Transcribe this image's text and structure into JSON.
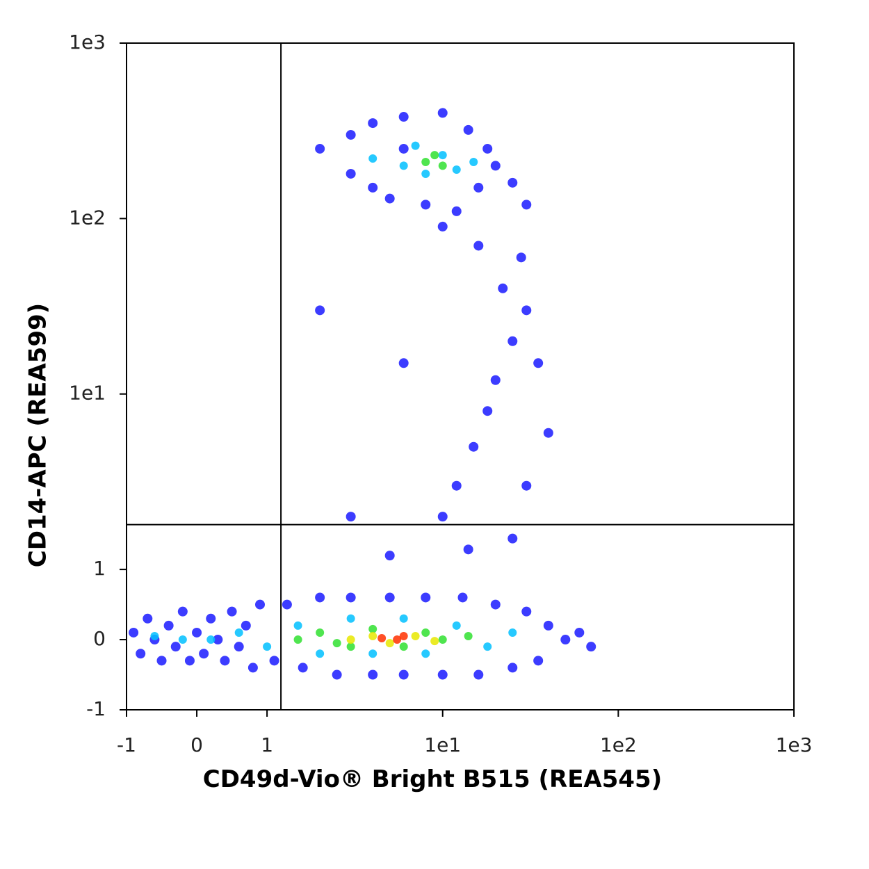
{
  "chart_data": {
    "type": "scatter",
    "x_label": "CD49d-Vio® Bright B515 (REA545)",
    "y_label": "CD14-APC (REA599)",
    "xscale": "biexponential",
    "yscale": "biexponential",
    "xlim": [
      -1,
      1000
    ],
    "ylim": [
      -1,
      1000
    ],
    "xticks": [
      -1,
      0,
      1,
      {
        "value": 10,
        "label": "1e1"
      },
      {
        "value": 100,
        "label": "1e2"
      },
      {
        "value": 1000,
        "label": "1e3"
      }
    ],
    "yticks": [
      -1,
      0,
      1,
      {
        "value": 10,
        "label": "1e1"
      },
      {
        "value": 100,
        "label": "1e2"
      },
      {
        "value": 1000,
        "label": "1e3"
      }
    ],
    "quadrant_lines": {
      "x": 1.2,
      "y": 1.8
    },
    "series": [
      {
        "color": "#1a1aff",
        "x": [
          -0.9,
          -0.8,
          -0.7,
          -0.6,
          -0.5,
          -0.4,
          -0.3,
          -0.2,
          -0.1,
          0,
          0.1,
          0.2,
          0.3,
          0.4,
          0.5,
          0.6,
          0.7,
          0.8,
          0.9,
          1.1,
          1.3,
          1.6,
          2,
          2.5,
          3,
          4,
          5,
          6,
          8,
          10,
          13,
          16,
          20,
          25,
          30,
          35,
          40,
          50,
          60,
          70,
          10,
          12,
          15,
          18,
          20,
          25,
          30,
          22,
          28,
          16,
          35,
          40,
          30,
          25,
          14,
          5,
          3,
          2,
          6,
          2,
          3,
          3,
          4,
          4,
          5,
          6,
          8,
          10,
          12,
          14,
          16,
          18,
          20,
          25,
          30,
          6,
          10
        ],
        "y": [
          0.1,
          -0.2,
          0.3,
          0,
          -0.3,
          0.2,
          -0.1,
          0.4,
          -0.3,
          0.1,
          -0.2,
          0.3,
          0,
          -0.3,
          0.4,
          -0.1,
          0.2,
          -0.4,
          0.5,
          -0.3,
          0.5,
          -0.4,
          0.6,
          -0.5,
          0.6,
          -0.5,
          0.6,
          -0.5,
          0.6,
          -0.5,
          0.6,
          -0.5,
          0.5,
          -0.4,
          0.4,
          -0.3,
          0.2,
          0,
          0.1,
          -0.1,
          2,
          3,
          5,
          8,
          12,
          20,
          30,
          40,
          60,
          70,
          15,
          6,
          3,
          1.5,
          1.3,
          1.2,
          2,
          30,
          15,
          250,
          180,
          300,
          150,
          350,
          130,
          380,
          120,
          400,
          110,
          320,
          150,
          250,
          200,
          160,
          120,
          250,
          90
        ]
      },
      {
        "color": "#00c0ff",
        "x": [
          0.2,
          0.6,
          1,
          1.5,
          2,
          3,
          4,
          6,
          8,
          12,
          18,
          25,
          -0.2,
          -0.6,
          4,
          6,
          8,
          10,
          12,
          7,
          15
        ],
        "y": [
          0,
          0.1,
          -0.1,
          0.2,
          -0.2,
          0.3,
          -0.2,
          0.3,
          -0.2,
          0.2,
          -0.1,
          0.1,
          0,
          0.05,
          220,
          200,
          180,
          230,
          190,
          260,
          210
        ]
      },
      {
        "color": "#30e030",
        "x": [
          1.5,
          2,
          3,
          4,
          6,
          8,
          10,
          14,
          2.5,
          8,
          10,
          9
        ],
        "y": [
          0,
          0.1,
          -0.1,
          0.15,
          -0.1,
          0.1,
          0,
          0.05,
          -0.05,
          210,
          200,
          230
        ]
      },
      {
        "color": "#e8e800",
        "x": [
          3,
          4,
          5,
          7,
          9
        ],
        "y": [
          0,
          0.05,
          -0.05,
          0.05,
          -0.02
        ]
      },
      {
        "color": "#ff3000",
        "x": [
          4.5,
          5.5,
          6
        ],
        "y": [
          0.02,
          0,
          0.05
        ]
      }
    ]
  }
}
